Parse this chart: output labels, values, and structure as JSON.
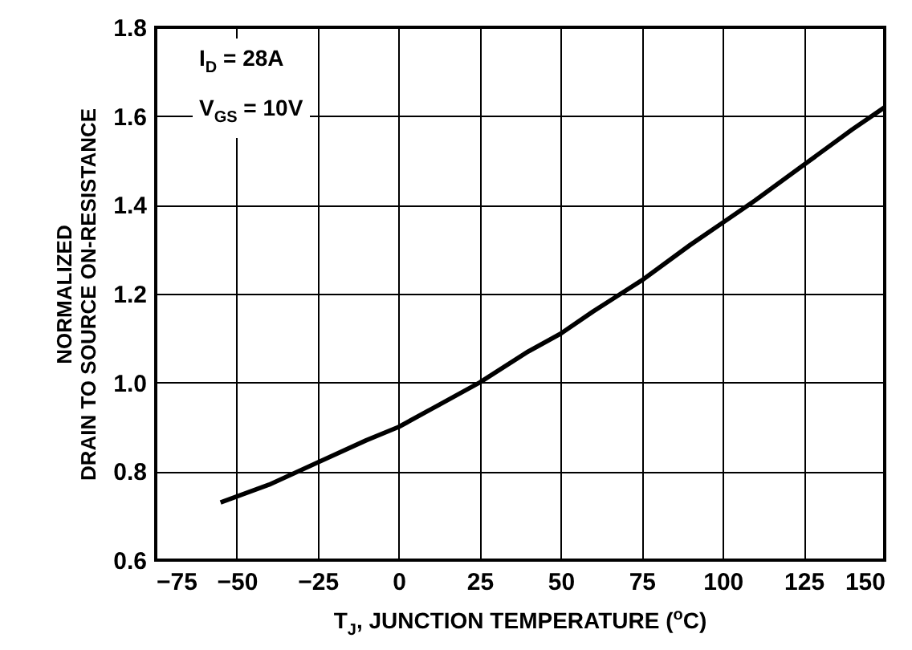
{
  "chart_data": {
    "type": "line",
    "xlabel": "T$_{J}$, JUNCTION TEMPERATURE ($^{o}$C)",
    "ylabel": "NORMALIZED\nDRAIN TO SOURCE ON-RESISTANCE",
    "annotations": [
      "I$_{D}$ = 28A",
      "V$_{GS}$ = 10V"
    ],
    "x": [
      -55,
      -40,
      -25,
      -10,
      0,
      10,
      25,
      40,
      50,
      60,
      75,
      90,
      100,
      110,
      125,
      140,
      150
    ],
    "series": [
      {
        "color": "#000000",
        "values": [
          0.73,
          0.77,
          0.82,
          0.87,
          0.9,
          0.94,
          1.0,
          1.07,
          1.11,
          1.16,
          1.23,
          1.31,
          1.36,
          1.41,
          1.49,
          1.57,
          1.62
        ]
      }
    ],
    "xlim": [
      -75,
      150
    ],
    "xticks": [
      -75,
      -50,
      -25,
      0,
      25,
      50,
      75,
      100,
      125,
      150
    ],
    "ylim": [
      0.6,
      1.8
    ],
    "yticks": [
      0.6,
      0.8,
      {
        "value": 1,
        "label": "1.0"
      },
      1.2,
      1.4,
      1.6,
      1.8
    ],
    "grid": true,
    "marker": "none",
    "line_style": "solid"
  }
}
